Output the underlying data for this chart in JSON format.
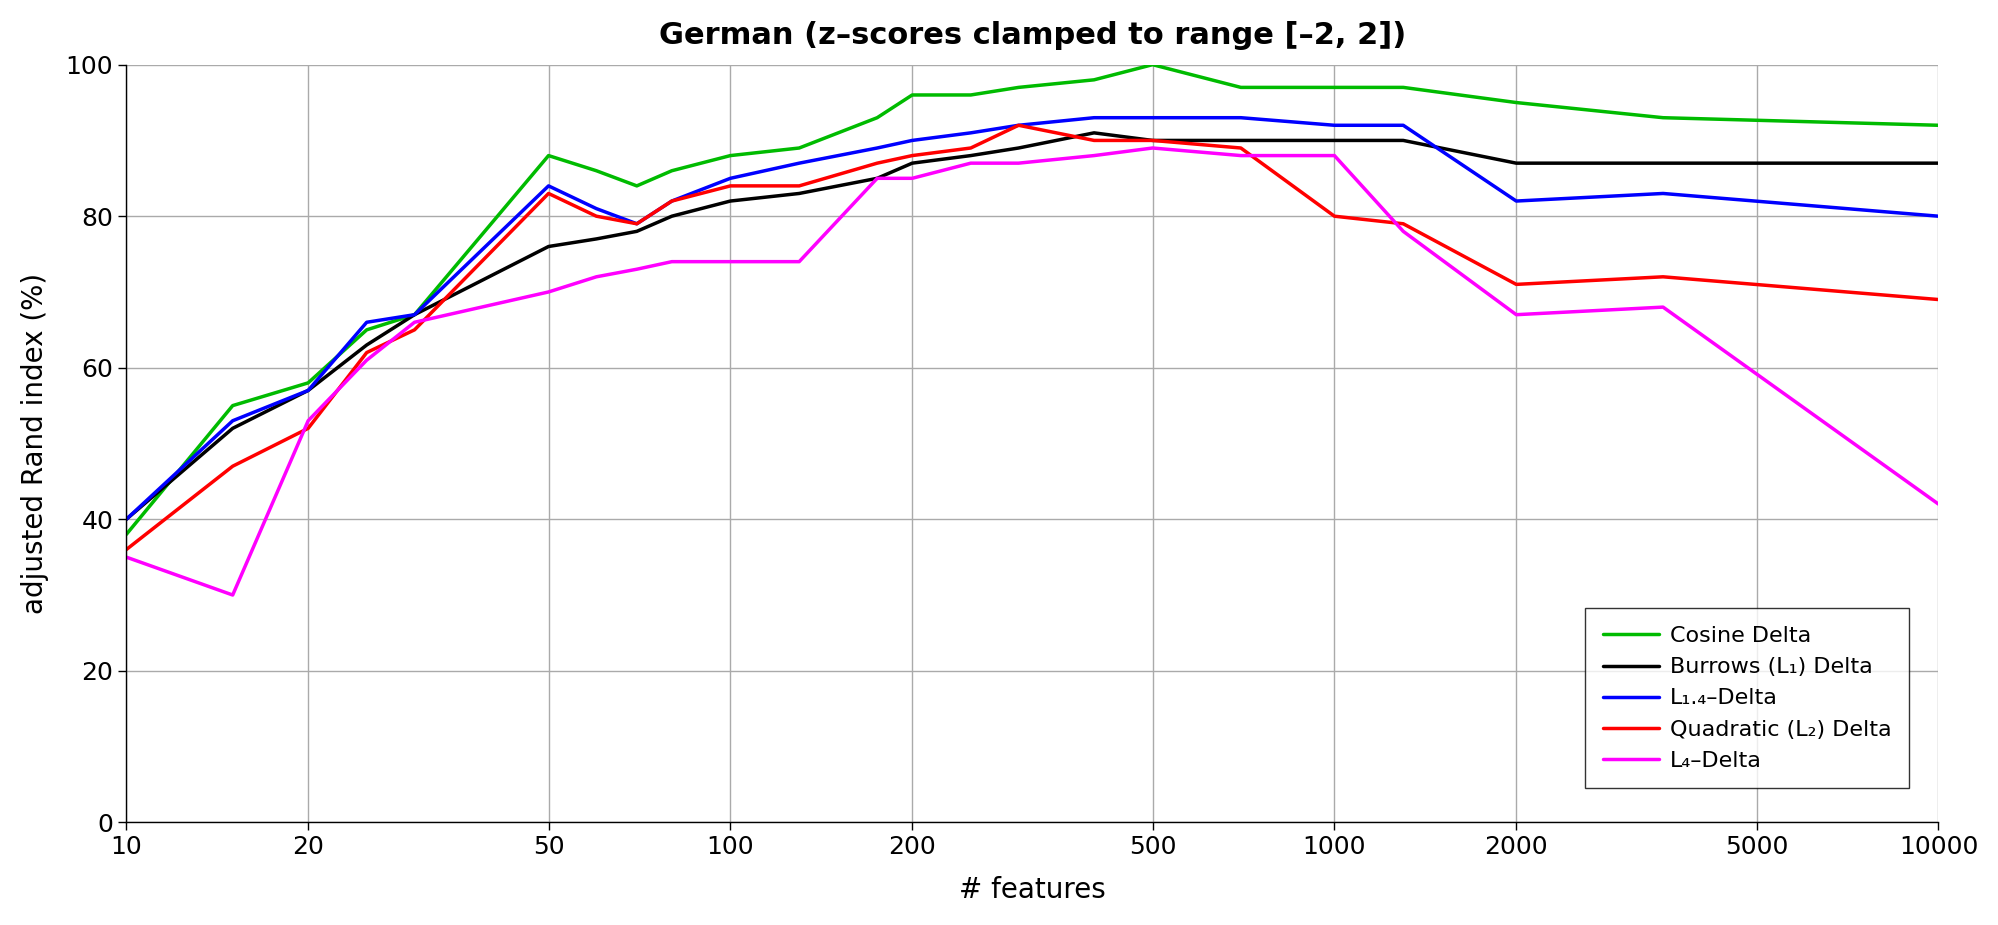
{
  "title": "German (z–scores clamped to range [–2, 2])",
  "xlabel": "# features",
  "ylabel": "adjusted Rand index (%)",
  "xlim_log": [
    10,
    10000
  ],
  "ylim": [
    0,
    100
  ],
  "yticks": [
    0,
    20,
    40,
    60,
    80,
    100
  ],
  "xticks": [
    10,
    20,
    50,
    100,
    200,
    500,
    1000,
    2000,
    5000,
    10000
  ],
  "background_color": "#ffffff",
  "grid_color": "#aaaaaa",
  "line_width": 2.5,
  "series": [
    {
      "label": "Cosine Delta",
      "color": "#00bb00",
      "values": [
        38,
        55,
        58,
        65,
        67,
        88,
        86,
        84,
        86,
        88,
        89,
        93,
        96,
        96,
        97,
        98,
        100,
        97,
        97,
        97,
        95,
        93,
        92
      ]
    },
    {
      "label": "Burrows (L₁) Delta",
      "color": "#000000",
      "values": [
        40,
        52,
        57,
        63,
        67,
        76,
        77,
        78,
        80,
        82,
        83,
        85,
        87,
        88,
        89,
        91,
        90,
        90,
        90,
        90,
        87,
        87,
        87
      ]
    },
    {
      "label": "L₁.₄–Delta",
      "color": "#0000ff",
      "values": [
        40,
        53,
        57,
        66,
        67,
        84,
        81,
        79,
        82,
        85,
        87,
        89,
        90,
        91,
        92,
        93,
        93,
        93,
        92,
        92,
        82,
        83,
        80
      ]
    },
    {
      "label": "Quadratic (L₂) Delta",
      "color": "#ff0000",
      "values": [
        36,
        47,
        52,
        62,
        65,
        83,
        80,
        79,
        82,
        84,
        84,
        87,
        88,
        89,
        92,
        90,
        90,
        89,
        80,
        79,
        71,
        72,
        69
      ]
    },
    {
      "label": "L₄–Delta",
      "color": "#ff00ff",
      "values": [
        35,
        30,
        53,
        61,
        66,
        70,
        72,
        73,
        74,
        74,
        74,
        85,
        85,
        87,
        87,
        88,
        89,
        88,
        88,
        78,
        67,
        68,
        42
      ]
    }
  ],
  "x_positions": [
    10,
    15,
    20,
    25,
    30,
    50,
    60,
    70,
    80,
    100,
    130,
    175,
    200,
    250,
    300,
    400,
    500,
    700,
    1000,
    1300,
    2000,
    3500,
    10000
  ]
}
